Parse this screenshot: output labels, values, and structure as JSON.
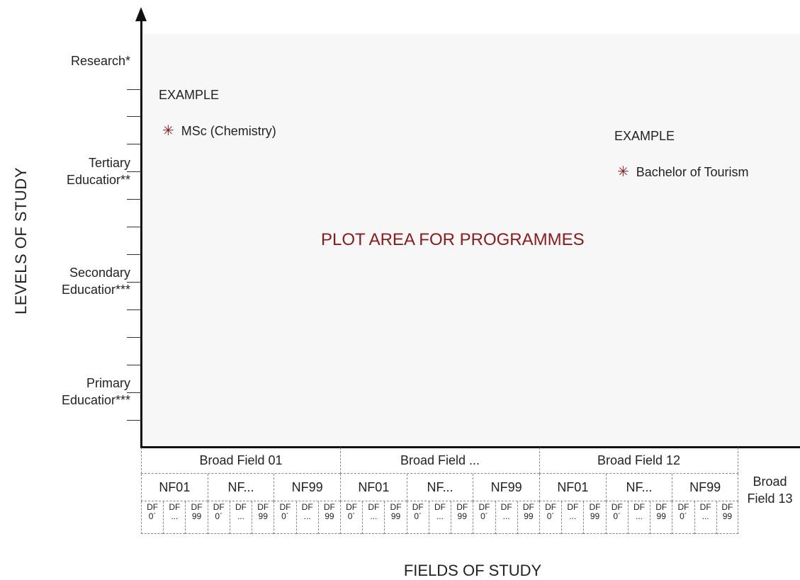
{
  "axes": {
    "y_label": "LEVELS OF STUDY",
    "x_label": "FIELDS OF STUDY"
  },
  "levels": [
    {
      "line1": "Research*",
      "line2": ""
    },
    {
      "line1": "Tertiary",
      "line2": "Educatior**"
    },
    {
      "line1": "Secondary",
      "line2": "Educatior***"
    },
    {
      "line1": "Primary",
      "line2": "Educatior***"
    }
  ],
  "plot": {
    "title": "PLOT AREA FOR PROGRAMMES",
    "examples": [
      {
        "heading": "EXAMPLE",
        "marker": "✳",
        "item": "MSc (Chemistry)"
      },
      {
        "heading": "EXAMPLE",
        "marker": "✳",
        "item": "Bachelor of Tourism"
      }
    ]
  },
  "broad_fields": [
    "Broad Field 01",
    "Broad Field ...",
    "Broad Field 12"
  ],
  "narrow_fields": [
    "NF01",
    "NF...",
    "NF99"
  ],
  "detailed_fields": [
    {
      "top": "DF",
      "bottom": "0´"
    },
    {
      "top": "DF",
      "bottom": "..."
    },
    {
      "top": "DF",
      "bottom": "99"
    }
  ],
  "broad_field_last": {
    "line1": "Broad",
    "line2": "Field 13"
  }
}
